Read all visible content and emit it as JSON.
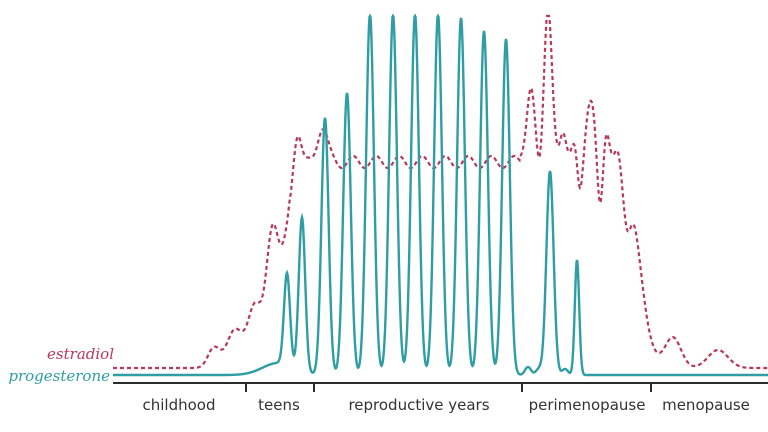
{
  "chart_data": {
    "type": "line",
    "series": [
      {
        "name": "estradiol",
        "color": "#b8385a",
        "style": "dashed"
      },
      {
        "name": "progesterone",
        "color": "#2e9ea4",
        "style": "solid"
      }
    ],
    "phases": [
      "childhood",
      "teens",
      "reproductive years",
      "perimenopause",
      "menopause"
    ],
    "axis_color": "#2b2b2b",
    "grid": false,
    "legend_placement": "left"
  }
}
